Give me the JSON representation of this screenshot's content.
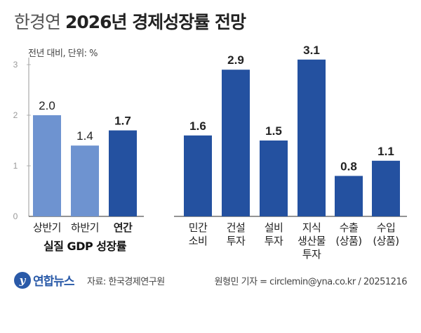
{
  "header": {
    "title_light": "한경연",
    "title_bold": "2026년 경제성장률 전망",
    "unit": "전년 대비, 단위: %"
  },
  "footer": {
    "logo_text": "연합뉴스",
    "source": "자료: 한국경제연구원",
    "credit": "원형민 기자 = circlemin@yna.co.kr / 20251216"
  },
  "colors": {
    "light_bar": "#6e93d0",
    "dark_bar": "#2451a0",
    "axis": "#999999"
  },
  "chart_data": {
    "type": "bar",
    "ylim": [
      0,
      3
    ],
    "yticks": [
      0,
      1,
      2,
      3
    ],
    "groups": [
      {
        "label": "실질 GDP 성장률",
        "bars": [
          {
            "label": [
              "상반기"
            ],
            "value": 2.0,
            "shade": "light"
          },
          {
            "label": [
              "하반기"
            ],
            "value": 1.4,
            "shade": "light"
          },
          {
            "label": [
              "연간"
            ],
            "value": 1.7,
            "shade": "dark"
          }
        ]
      },
      {
        "label": "",
        "bars": [
          {
            "label": [
              "민간",
              "소비"
            ],
            "value": 1.6,
            "shade": "dark"
          },
          {
            "label": [
              "건설",
              "투자"
            ],
            "value": 2.9,
            "shade": "dark"
          },
          {
            "label": [
              "설비",
              "투자"
            ],
            "value": 1.5,
            "shade": "dark"
          },
          {
            "label": [
              "지식",
              "생산물",
              "투자"
            ],
            "value": 3.1,
            "shade": "dark"
          },
          {
            "label": [
              "수출",
              "(상품)"
            ],
            "value": 0.8,
            "shade": "dark"
          },
          {
            "label": [
              "수입",
              "(상품)"
            ],
            "value": 1.1,
            "shade": "dark"
          }
        ]
      }
    ]
  }
}
